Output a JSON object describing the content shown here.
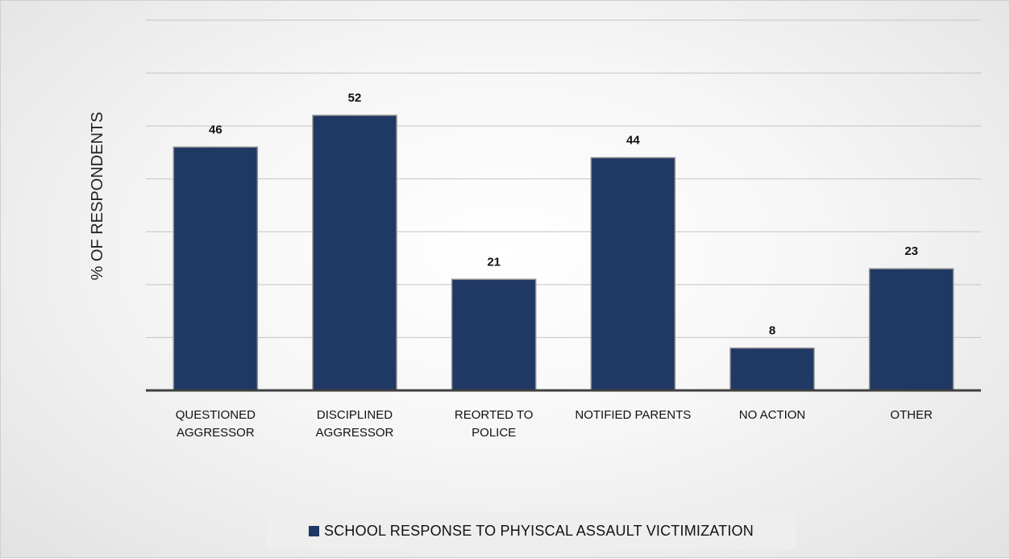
{
  "chart_data": {
    "type": "bar",
    "title": "",
    "xlabel": "",
    "ylabel": "% OF RESPONDENTS",
    "categories": [
      [
        "QUESTIONED",
        "AGGRESSOR"
      ],
      [
        "DISCIPLINED",
        "AGGRESSOR"
      ],
      [
        "REORTED TO",
        "POLICE"
      ],
      [
        "NOTIFIED PARENTS"
      ],
      [
        "NO ACTION"
      ],
      [
        "OTHER"
      ]
    ],
    "series": [
      {
        "name": "SCHOOL RESPONSE TO PHYISCAL ASSAULT VICTIMIZATION",
        "values": [
          46,
          52,
          21,
          44,
          8,
          23
        ],
        "color": "#1f3864"
      }
    ],
    "ylim": [
      0,
      70
    ],
    "grid": true,
    "legend_position": "bottom",
    "data_labels": true
  }
}
